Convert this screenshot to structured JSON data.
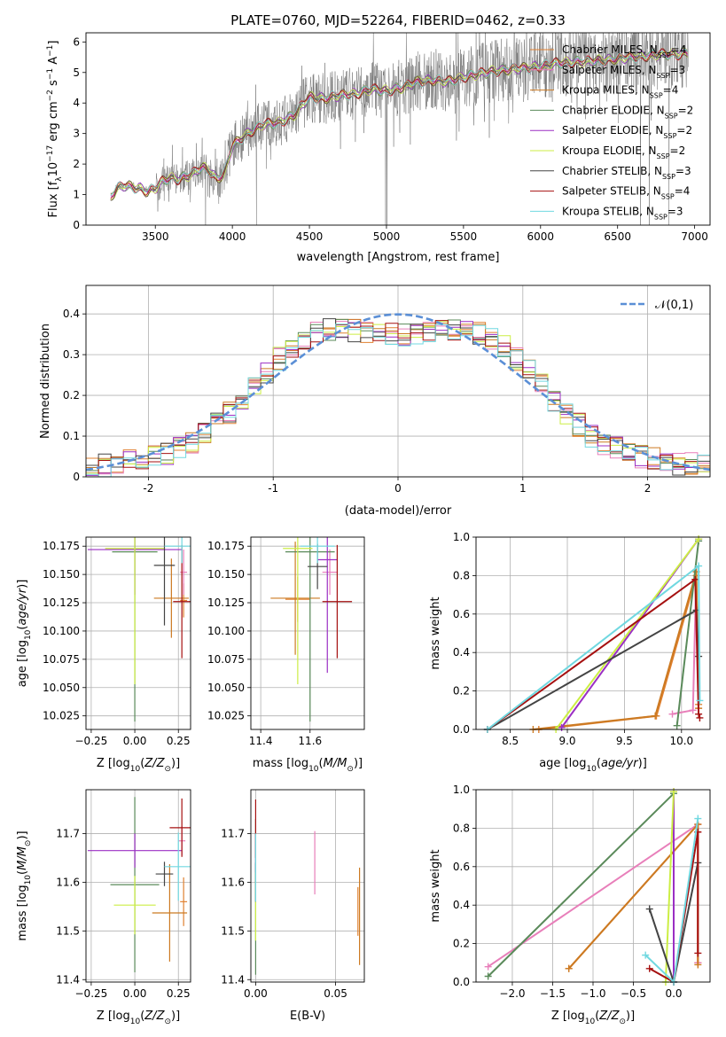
{
  "title": "PLATE=0760, MJD=52264, FIBERID=0462, z=0.33",
  "colors": {
    "Chabrier MILES": "#e08030",
    "Salpeter MILES": "#e87fba",
    "Kroupa MILES": "#cc7a22",
    "Chabrier ELODIE": "#5a8a5a",
    "Salpeter ELODIE": "#9b2fc4",
    "Kroupa ELODIE": "#ccee44",
    "Chabrier STELIB": "#444444",
    "Salpeter STELIB": "#a51010",
    "Kroupa STELIB": "#70d8e0",
    "normal": "#5b8fd6",
    "data": "#777777"
  },
  "chart_data": [
    {
      "id": "spectrum",
      "type": "line",
      "xlabel": "wavelength [Angstrom, rest frame]",
      "ylabel": "Flux [f_λ 10^-17 erg cm^-2 s^-1 A^-1]",
      "xlim": [
        3050,
        7100
      ],
      "ylim": [
        0,
        6.3
      ],
      "xticks": [
        3500,
        4000,
        4500,
        5000,
        5500,
        6000,
        6500,
        7000
      ],
      "yticks": [
        0,
        1,
        2,
        3,
        4,
        5,
        6
      ],
      "grid": false,
      "legend_position": "top-right",
      "legend": [
        {
          "label": "Chabrier MILES, N_SSP=4",
          "color_key": "Chabrier MILES"
        },
        {
          "label": "Salpeter MILES, N_SSP=3",
          "color_key": "Salpeter MILES"
        },
        {
          "label": "Kroupa MILES, N_SSP=4",
          "color_key": "Kroupa MILES"
        },
        {
          "label": "Chabrier ELODIE, N_SSP=2",
          "color_key": "Chabrier ELODIE"
        },
        {
          "label": "Salpeter ELODIE, N_SSP=2",
          "color_key": "Salpeter ELODIE"
        },
        {
          "label": "Kroupa ELODIE, N_SSP=2",
          "color_key": "Kroupa ELODIE"
        },
        {
          "label": "Chabrier STELIB, N_SSP=3",
          "color_key": "Chabrier STELIB"
        },
        {
          "label": "Salpeter STELIB, N_SSP=4",
          "color_key": "Salpeter STELIB"
        },
        {
          "label": "Kroupa STELIB, N_SSP=3",
          "color_key": "Kroupa STELIB"
        }
      ],
      "model_continuum": {
        "x": [
          3210,
          3250,
          3300,
          3350,
          3400,
          3450,
          3500,
          3550,
          3600,
          3650,
          3700,
          3750,
          3800,
          3850,
          3900,
          3950,
          4000,
          4100,
          4200,
          4300,
          4400,
          4500,
          4600,
          4700,
          4800,
          4900,
          5000,
          5100,
          5200,
          5300,
          5400,
          5500,
          5600,
          5700,
          5800,
          5900,
          6000,
          6100,
          6200,
          6300,
          6400,
          6500,
          6600,
          6700,
          6800,
          6900,
          6950
        ],
        "y": [
          0.9,
          1.2,
          1.3,
          1.25,
          1.2,
          1.1,
          1.2,
          1.45,
          1.55,
          1.5,
          1.6,
          1.7,
          1.9,
          1.8,
          1.5,
          1.7,
          2.6,
          3.0,
          3.3,
          3.35,
          3.6,
          4.2,
          4.15,
          4.25,
          4.3,
          4.45,
          4.4,
          4.5,
          4.7,
          4.75,
          4.7,
          4.85,
          4.95,
          5.05,
          5.1,
          5.15,
          5.2,
          5.3,
          5.35,
          5.35,
          5.4,
          5.45,
          5.5,
          5.55,
          5.6,
          5.6,
          5.65
        ]
      }
    },
    {
      "id": "residuals",
      "type": "line",
      "xlabel": "(data-model)/error",
      "ylabel": "Normed distribution",
      "xlim": [
        -2.5,
        2.5
      ],
      "ylim": [
        0,
        0.47
      ],
      "xticks": [
        -2,
        -1,
        0,
        1,
        2
      ],
      "yticks": [
        0.0,
        0.1,
        0.2,
        0.3,
        0.4
      ],
      "grid": true,
      "legend_position": "top-right",
      "normal_label": "𝒩(0,1)"
    },
    {
      "id": "age-vs-Z",
      "type": "scatter",
      "xlabel": "Z [log10(Z/Z⊙)]",
      "ylabel": "age  [log10(age/yr)]",
      "xlim": [
        -0.28,
        0.32
      ],
      "ylim": [
        10.013,
        10.183
      ],
      "xticks": [
        -0.25,
        0.0,
        0.25
      ],
      "xticklabels": [
        "−0.25",
        "0.00",
        "0.25"
      ],
      "yticks": [
        10.025,
        10.05,
        10.075,
        10.1,
        10.125,
        10.15,
        10.175
      ],
      "yticklabels": [
        "10.025",
        "10.050",
        "10.075",
        "10.100",
        "10.125",
        "10.150",
        "10.175"
      ],
      "grid": true,
      "points": [
        {
          "series": "Chabrier MILES",
          "x": 0.28,
          "xerr": 0.02,
          "y": 10.127,
          "yerr": 0.015
        },
        {
          "series": "Salpeter MILES",
          "x": 0.28,
          "xerr": 0.02,
          "y": 10.152,
          "yerr": 0.02
        },
        {
          "series": "Kroupa MILES",
          "x": 0.21,
          "xerr": 0.1,
          "y": 10.129,
          "yerr": 0.035
        },
        {
          "series": "Chabrier ELODIE",
          "x": 0.0,
          "xerr": 0.13,
          "y": 10.17,
          "yerr": 0.15
        },
        {
          "series": "Salpeter ELODIE",
          "x": 0.0,
          "xerr": 0.27,
          "y": 10.172,
          "yerr": 0.04
        },
        {
          "series": "Kroupa ELODIE",
          "x": 0.0,
          "xerr": 0.17,
          "y": 10.173,
          "yerr": 0.12
        },
        {
          "series": "Chabrier STELIB",
          "x": 0.17,
          "xerr": 0.06,
          "y": 10.158,
          "yerr": 0.053
        },
        {
          "series": "Salpeter STELIB",
          "x": 0.27,
          "xerr": 0.05,
          "y": 10.126,
          "yerr": 0.05
        },
        {
          "series": "Kroupa STELIB",
          "x": 0.27,
          "xerr": 0.1,
          "y": 10.175,
          "yerr": 0.015
        }
      ]
    },
    {
      "id": "age-vs-mass",
      "type": "scatter",
      "xlabel": "mass [log10(M/M⊙)]",
      "ylabel": "",
      "xlim": [
        11.36,
        11.82
      ],
      "ylim": [
        10.013,
        10.183
      ],
      "xticks": [
        11.4,
        11.6
      ],
      "xticklabels": [
        "11.4",
        "11.6"
      ],
      "yticks": [
        10.025,
        10.05,
        10.075,
        10.1,
        10.125,
        10.15,
        10.175
      ],
      "yticklabels": [
        "10.025",
        "10.050",
        "10.075",
        "10.100",
        "10.125",
        "10.150",
        "10.175"
      ],
      "grid": true,
      "points": [
        {
          "series": "Chabrier MILES",
          "x": 11.55,
          "xerr": 0.05,
          "y": 10.128,
          "yerr": 0.02
        },
        {
          "series": "Salpeter MILES",
          "x": 11.68,
          "xerr": 0.03,
          "y": 10.152,
          "yerr": 0.02
        },
        {
          "series": "Kroupa MILES",
          "x": 11.54,
          "xerr": 0.1,
          "y": 10.129,
          "yerr": 0.05
        },
        {
          "series": "Chabrier ELODIE",
          "x": 11.6,
          "xerr": 0.1,
          "y": 10.17,
          "yerr": 0.15
        },
        {
          "series": "Salpeter ELODIE",
          "x": 11.67,
          "xerr": 0.04,
          "y": 10.163,
          "yerr": 0.1
        },
        {
          "series": "Kroupa ELODIE",
          "x": 11.55,
          "xerr": 0.06,
          "y": 10.173,
          "yerr": 0.12
        },
        {
          "series": "Chabrier STELIB",
          "x": 11.63,
          "xerr": 0.04,
          "y": 10.157,
          "yerr": 0.02
        },
        {
          "series": "Salpeter STELIB",
          "x": 11.71,
          "xerr": 0.06,
          "y": 10.126,
          "yerr": 0.05
        },
        {
          "series": "Kroupa STELIB",
          "x": 11.63,
          "xerr": 0.07,
          "y": 10.175,
          "yerr": 0.015
        }
      ]
    },
    {
      "id": "weight-vs-age",
      "type": "line",
      "xlabel": "age  [log10(age/yr)]",
      "ylabel": "mass weight",
      "xlim": [
        8.2,
        10.25
      ],
      "ylim": [
        0,
        1.0
      ],
      "xticks": [
        8.5,
        9.0,
        9.5,
        10.0
      ],
      "xticklabels": [
        "8.5",
        "9.0",
        "9.5",
        "10.0"
      ],
      "yticks": [
        0.0,
        0.2,
        0.4,
        0.6,
        0.8,
        1.0
      ],
      "yticklabels": [
        "0.0",
        "0.2",
        "0.4",
        "0.6",
        "0.8",
        "1.0"
      ],
      "grid": true,
      "series": [
        {
          "series": "Chabrier MILES",
          "points": [
            [
              8.75,
              0.0
            ],
            [
              9.78,
              0.07
            ],
            [
              10.13,
              0.8
            ],
            [
              10.15,
              0.13
            ]
          ]
        },
        {
          "series": "Salpeter MILES",
          "points": [
            [
              9.92,
              0.08
            ],
            [
              10.1,
              0.1
            ],
            [
              10.13,
              0.82
            ]
          ]
        },
        {
          "series": "Kroupa MILES",
          "points": [
            [
              8.7,
              0.0
            ],
            [
              9.77,
              0.07
            ],
            [
              10.13,
              0.82
            ],
            [
              10.15,
              0.11
            ]
          ]
        },
        {
          "series": "Chabrier ELODIE",
          "points": [
            [
              9.96,
              0.02
            ],
            [
              10.15,
              0.98
            ]
          ]
        },
        {
          "series": "Salpeter ELODIE",
          "points": [
            [
              8.95,
              0.01
            ],
            [
              10.15,
              0.99
            ]
          ]
        },
        {
          "series": "Kroupa ELODIE",
          "points": [
            [
              8.9,
              0.0
            ],
            [
              10.15,
              0.99
            ]
          ]
        },
        {
          "series": "Chabrier STELIB",
          "points": [
            [
              8.3,
              0.0
            ],
            [
              10.13,
              0.62
            ],
            [
              10.15,
              0.38
            ]
          ]
        },
        {
          "series": "Salpeter STELIB",
          "points": [
            [
              8.3,
              0.0
            ],
            [
              10.12,
              0.78
            ],
            [
              10.15,
              0.08
            ],
            [
              10.16,
              0.06
            ]
          ]
        },
        {
          "series": "Kroupa STELIB",
          "points": [
            [
              8.3,
              0.0
            ],
            [
              10.15,
              0.85
            ],
            [
              10.16,
              0.15
            ]
          ]
        }
      ]
    },
    {
      "id": "mass-vs-Z",
      "type": "scatter",
      "xlabel": "Z [log10(Z/Z⊙)]",
      "ylabel": "mass [log10(M/M⊙)]",
      "xlim": [
        -0.28,
        0.32
      ],
      "ylim": [
        11.395,
        11.79
      ],
      "xticks": [
        -0.25,
        0.0,
        0.25
      ],
      "xticklabels": [
        "−0.25",
        "0.00",
        "0.25"
      ],
      "yticks": [
        11.4,
        11.5,
        11.6,
        11.7
      ],
      "yticklabels": [
        "11.4",
        "11.5",
        "11.6",
        "11.7"
      ],
      "grid": true,
      "points": [
        {
          "series": "Chabrier MILES",
          "x": 0.28,
          "xerr": 0.02,
          "y": 11.56,
          "yerr": 0.05
        },
        {
          "series": "Salpeter MILES",
          "x": 0.27,
          "xerr": 0.02,
          "y": 11.685,
          "yerr": 0.03
        },
        {
          "series": "Kroupa MILES",
          "x": 0.2,
          "xerr": 0.1,
          "y": 11.537,
          "yerr": 0.1
        },
        {
          "series": "Chabrier ELODIE",
          "x": 0.0,
          "xerr": 0.14,
          "y": 11.595,
          "yerr": 0.18
        },
        {
          "series": "Salpeter ELODIE",
          "x": 0.0,
          "xerr": 0.27,
          "y": 11.665,
          "yerr": 0.035
        },
        {
          "series": "Kroupa ELODIE",
          "x": 0.0,
          "xerr": 0.12,
          "y": 11.553,
          "yerr": 0.06
        },
        {
          "series": "Chabrier STELIB",
          "x": 0.17,
          "xerr": 0.05,
          "y": 11.617,
          "yerr": 0.025
        },
        {
          "series": "Salpeter STELIB",
          "x": 0.27,
          "xerr": 0.07,
          "y": 11.712,
          "yerr": 0.06
        },
        {
          "series": "Kroupa STELIB",
          "x": 0.25,
          "xerr": 0.08,
          "y": 11.632,
          "yerr": 0.07
        }
      ]
    },
    {
      "id": "mass-vs-EBV",
      "type": "scatter",
      "xlabel": "E(B-V)",
      "ylabel": "",
      "xlim": [
        -0.003,
        0.068
      ],
      "ylim": [
        11.395,
        11.79
      ],
      "xticks": [
        0.0,
        0.05
      ],
      "xticklabels": [
        "0.00",
        "0.05"
      ],
      "yticks": [
        11.4,
        11.5,
        11.6,
        11.7
      ],
      "yticklabels": [
        "11.4",
        "11.5",
        "11.6",
        "11.7"
      ],
      "grid": true,
      "points": [
        {
          "series": "Chabrier MILES",
          "x": 0.064,
          "xerr": 0,
          "y": 11.54,
          "yerr": 0.05
        },
        {
          "series": "Salpeter MILES",
          "x": 0.037,
          "xerr": 0,
          "y": 11.64,
          "yerr": 0.065
        },
        {
          "series": "Kroupa MILES",
          "x": 0.065,
          "xerr": 0,
          "y": 11.53,
          "yerr": 0.1
        },
        {
          "series": "Chabrier ELODIE",
          "x": 0.0,
          "xerr": 0,
          "y": 11.57,
          "yerr": 0.16
        },
        {
          "series": "Salpeter ELODIE",
          "x": 0.0,
          "xerr": 0,
          "y": 11.66,
          "yerr": 0.04
        },
        {
          "series": "Kroupa ELODIE",
          "x": 0.0,
          "xerr": 0,
          "y": 11.55,
          "yerr": 0.07
        },
        {
          "series": "Chabrier STELIB",
          "x": 0.0,
          "xerr": 0,
          "y": 11.6,
          "yerr": 0.04
        },
        {
          "series": "Salpeter STELIB",
          "x": 0.0,
          "xerr": 0,
          "y": 11.71,
          "yerr": 0.06
        },
        {
          "series": "Kroupa STELIB",
          "x": 0.0,
          "xerr": 0,
          "y": 11.63,
          "yerr": 0.07
        }
      ]
    },
    {
      "id": "weight-vs-Z",
      "type": "line",
      "xlabel": "Z [log10(Z/Z⊙)]",
      "ylabel": "mass weight",
      "xlim": [
        -2.45,
        0.45
      ],
      "ylim": [
        0,
        1.0
      ],
      "xticks": [
        -2.0,
        -1.5,
        -1.0,
        -0.5,
        0.0
      ],
      "xticklabels": [
        "−2.0",
        "−1.5",
        "−1.0",
        "−0.5",
        "0.0"
      ],
      "yticks": [
        0.0,
        0.2,
        0.4,
        0.6,
        0.8,
        1.0
      ],
      "yticklabels": [
        "0.0",
        "0.2",
        "0.4",
        "0.6",
        "0.8",
        "1.0"
      ],
      "grid": true,
      "series": [
        {
          "series": "Chabrier MILES",
          "points": [
            [
              -1.3,
              0.07
            ],
            [
              0.3,
              0.82
            ],
            [
              0.3,
              0.1
            ]
          ]
        },
        {
          "series": "Salpeter MILES",
          "points": [
            [
              -2.3,
              0.08
            ],
            [
              0.3,
              0.82
            ],
            [
              0.3,
              0.1
            ]
          ]
        },
        {
          "series": "Kroupa MILES",
          "points": [
            [
              -1.3,
              0.07
            ],
            [
              0.3,
              0.82
            ],
            [
              0.3,
              0.09
            ]
          ]
        },
        {
          "series": "Chabrier ELODIE",
          "points": [
            [
              -2.3,
              0.03
            ],
            [
              0.0,
              0.98
            ]
          ]
        },
        {
          "series": "Salpeter ELODIE",
          "points": [
            [
              0.0,
              0.0
            ],
            [
              0.0,
              0.99
            ]
          ]
        },
        {
          "series": "Kroupa ELODIE",
          "points": [
            [
              -0.1,
              0.0
            ],
            [
              0.0,
              0.99
            ]
          ]
        },
        {
          "series": "Chabrier STELIB",
          "points": [
            [
              -0.3,
              0.38
            ],
            [
              0.0,
              0.0
            ],
            [
              0.3,
              0.62
            ]
          ]
        },
        {
          "series": "Salpeter STELIB",
          "points": [
            [
              -0.3,
              0.07
            ],
            [
              0.0,
              0.0
            ],
            [
              0.3,
              0.78
            ],
            [
              0.3,
              0.15
            ]
          ]
        },
        {
          "series": "Kroupa STELIB",
          "points": [
            [
              -0.35,
              0.14
            ],
            [
              0.0,
              0.0
            ],
            [
              0.3,
              0.85
            ]
          ]
        }
      ]
    }
  ]
}
